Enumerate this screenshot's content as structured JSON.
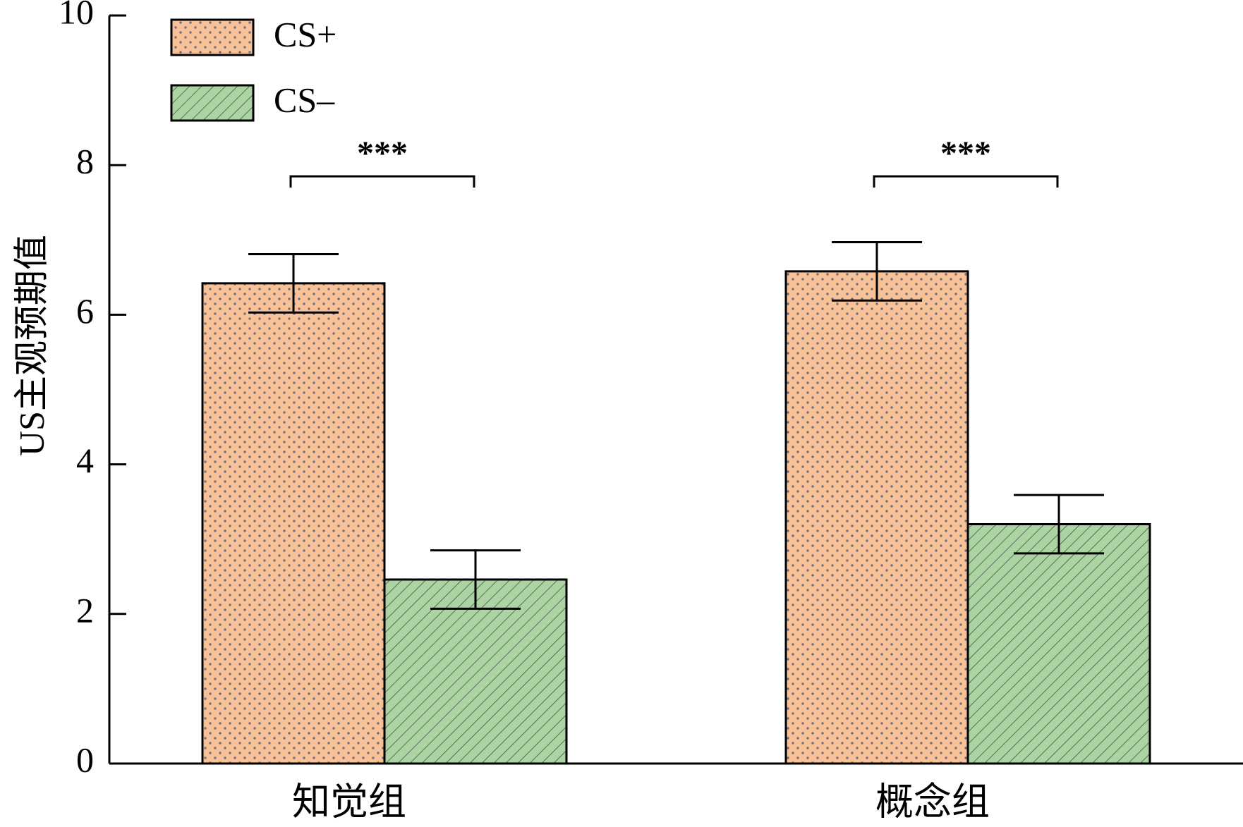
{
  "chart_data": {
    "type": "bar",
    "title": "",
    "xlabel": "",
    "ylabel": "US主观预期值",
    "ylim": [
      0,
      10
    ],
    "yticks": [
      0,
      2,
      4,
      6,
      8,
      10
    ],
    "grid": false,
    "legend_position": "top-left",
    "categories": [
      "知觉组",
      "概念组"
    ],
    "series": [
      {
        "name": "CS+",
        "values": [
          6.42,
          6.58
        ],
        "error": [
          0.39,
          0.39
        ],
        "fill_color": "#f9c296",
        "pattern": "dots"
      },
      {
        "name": "CS–",
        "values": [
          2.46,
          3.2
        ],
        "error": [
          0.39,
          0.39
        ],
        "fill_color": "#acd4a2",
        "pattern": "hatch"
      }
    ],
    "annotations": [
      {
        "category": "知觉组",
        "label": "***"
      },
      {
        "category": "概念组",
        "label": "***"
      }
    ]
  }
}
